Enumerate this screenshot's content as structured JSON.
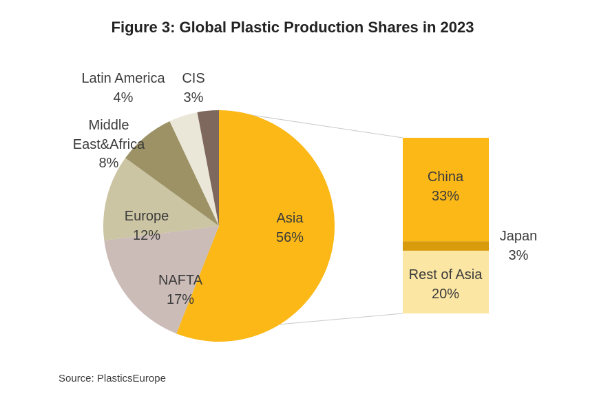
{
  "title": "Figure 3: Global Plastic Production Shares in 2023",
  "source": "Source: PlasticsEurope",
  "chart_data": {
    "type": "pie",
    "title": "Figure 3: Global Plastic Production Shares in 2023",
    "unit": "%",
    "direction": "clockwise",
    "start_angle": "12 o'clock",
    "legend": "none",
    "slices": [
      {
        "label": "Asia",
        "value": 56,
        "pct": "56%",
        "color": "#FBB817"
      },
      {
        "label": "NAFTA",
        "value": 17,
        "pct": "17%",
        "color": "#CCBCB8"
      },
      {
        "label": "Europe",
        "value": 12,
        "pct": "12%",
        "color": "#CCC5A3"
      },
      {
        "label": "Middle East&Africa",
        "value": 8,
        "pct": "8%",
        "color": "#9C9265"
      },
      {
        "label": "Latin America",
        "value": 4,
        "pct": "4%",
        "color": "#EAE7D8"
      },
      {
        "label": "CIS",
        "value": 3,
        "pct": "3%",
        "color": "#7E675C"
      }
    ],
    "breakdown": {
      "parent": "Asia",
      "type": "stacked-bar",
      "segments": [
        {
          "label": "China",
          "value": 33,
          "pct": "33%",
          "color": "#FBB817"
        },
        {
          "label": "Japan",
          "value": 3,
          "pct": "3%",
          "color": "#D79B0B"
        },
        {
          "label": "Rest of Asia",
          "value": 20,
          "pct": "20%",
          "color": "#FCE6A4"
        }
      ]
    }
  }
}
